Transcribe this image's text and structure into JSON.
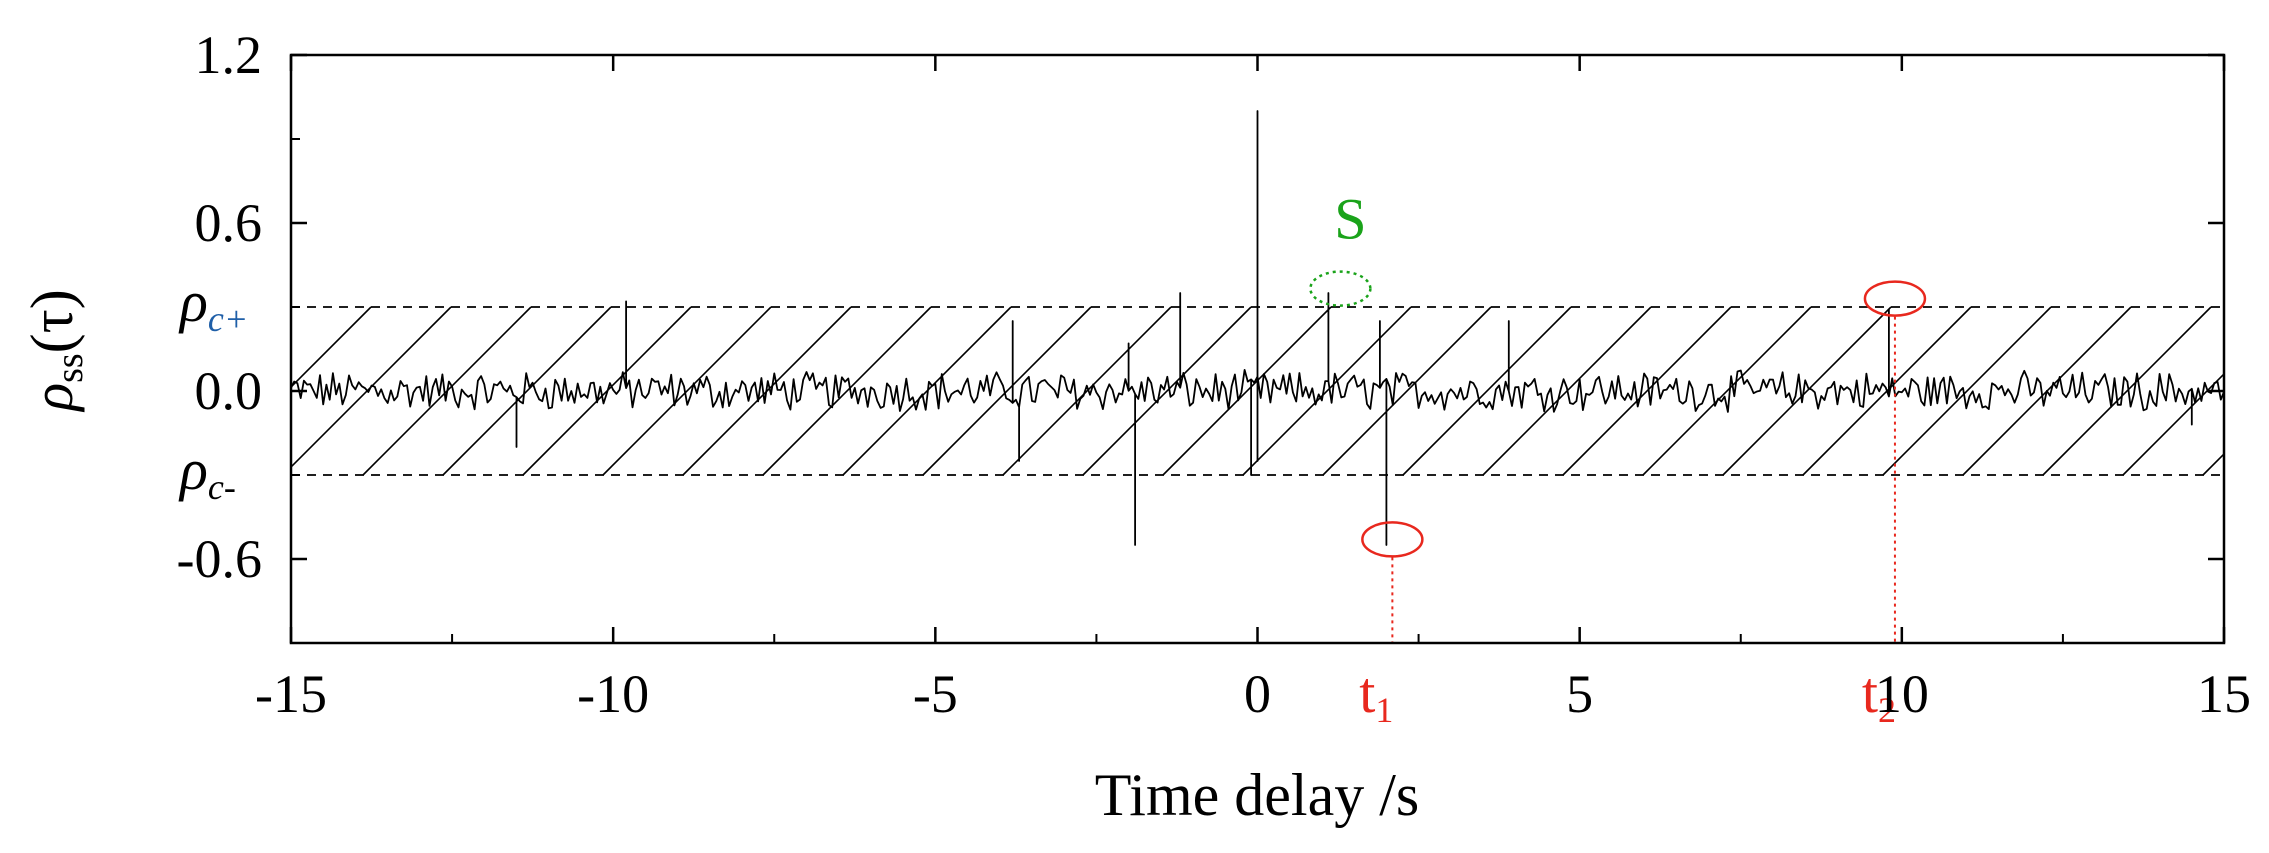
{
  "chart_data": {
    "type": "line",
    "xlabel": "Time delay /s",
    "ylabel": {
      "main": "ρ",
      "sub": "ss",
      "arg": "(τ)"
    },
    "xlim": [
      -15,
      15
    ],
    "ylim": [
      -0.9,
      1.2
    ],
    "x_ticks": [
      -15,
      -10,
      -5,
      0,
      5,
      10,
      15
    ],
    "x_tick_labels": [
      "-15",
      "-10",
      "-5",
      "0",
      "5",
      "10",
      "15"
    ],
    "y_ticks": [
      -0.6,
      0.0,
      0.6,
      1.2
    ],
    "y_tick_labels": [
      "-0.6",
      "0.0",
      "0.6",
      "1.2"
    ],
    "thresholds": [
      {
        "id": "upper",
        "value": 0.3,
        "label": "ρ",
        "sub": "c+",
        "sub_color": "#1f5fa8"
      },
      {
        "id": "lower",
        "value": -0.3,
        "label": "ρ",
        "sub": "c-",
        "sub_color": "#000000"
      }
    ],
    "hatch_band": [
      -0.3,
      0.3
    ],
    "series": [
      {
        "style": "black-line",
        "noise_amplitude": 0.06,
        "x_step": 0.05,
        "spikes": [
          {
            "x": 0.0,
            "y": 1.0
          },
          {
            "x": 0.0,
            "y": -0.25
          },
          {
            "x": -9.8,
            "y": 0.32
          },
          {
            "x": -11.5,
            "y": -0.2
          },
          {
            "x": -3.8,
            "y": 0.25
          },
          {
            "x": -3.7,
            "y": -0.25
          },
          {
            "x": -2.0,
            "y": 0.17
          },
          {
            "x": -1.9,
            "y": -0.55
          },
          {
            "x": -1.2,
            "y": 0.35
          },
          {
            "x": -0.1,
            "y": -0.3
          },
          {
            "x": 1.1,
            "y": 0.35
          },
          {
            "x": 1.9,
            "y": 0.25
          },
          {
            "x": 2.0,
            "y": -0.55
          },
          {
            "x": 3.9,
            "y": 0.25
          },
          {
            "x": 9.8,
            "y": 0.29
          },
          {
            "x": 14.5,
            "y": -0.12
          }
        ]
      }
    ],
    "annotations": [
      {
        "id": "s",
        "label": "S",
        "color": "#1aa31a",
        "x": 1.1,
        "y": 0.33,
        "style": "dotted-ellipse"
      },
      {
        "id": "t1",
        "label": "t",
        "sub": "1",
        "color": "#e8281e",
        "x": 2.0,
        "y": -0.53,
        "style": "dashed-ellipse-drop"
      },
      {
        "id": "t2",
        "label": "t",
        "sub": "2",
        "color": "#e8281e",
        "x": 9.8,
        "y": 0.33,
        "style": "dashed-ellipse-drop"
      }
    ]
  }
}
